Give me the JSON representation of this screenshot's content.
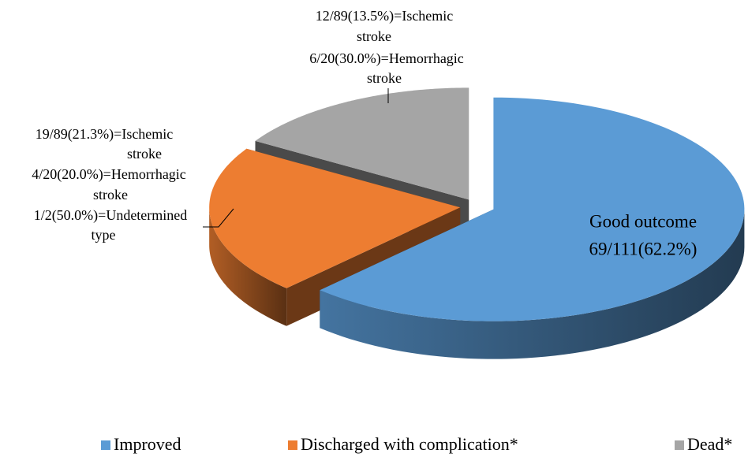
{
  "chart_data": {
    "type": "pie3d",
    "categories": [
      "Improved",
      "Discharged with complication*",
      "Dead*"
    ],
    "values": [
      69,
      24,
      18
    ],
    "colors": [
      "#5b9bd5",
      "#ed7d31",
      "#a5a5a5"
    ],
    "annotations": [
      [
        "Good outcome",
        "69/111(62.2%)"
      ],
      [
        "19/89(21.3%)=Ischemic",
        "stroke",
        "4/20(20.0%)=Hemorrhagic",
        "stroke",
        "1/2(50.0%)=Undetermined",
        "type"
      ],
      [
        "12/89(13.5%)=Ischemic",
        "stroke",
        "6/20(30.0%)=Hemorrhagic",
        "stroke"
      ]
    ],
    "legend": "bottom"
  }
}
